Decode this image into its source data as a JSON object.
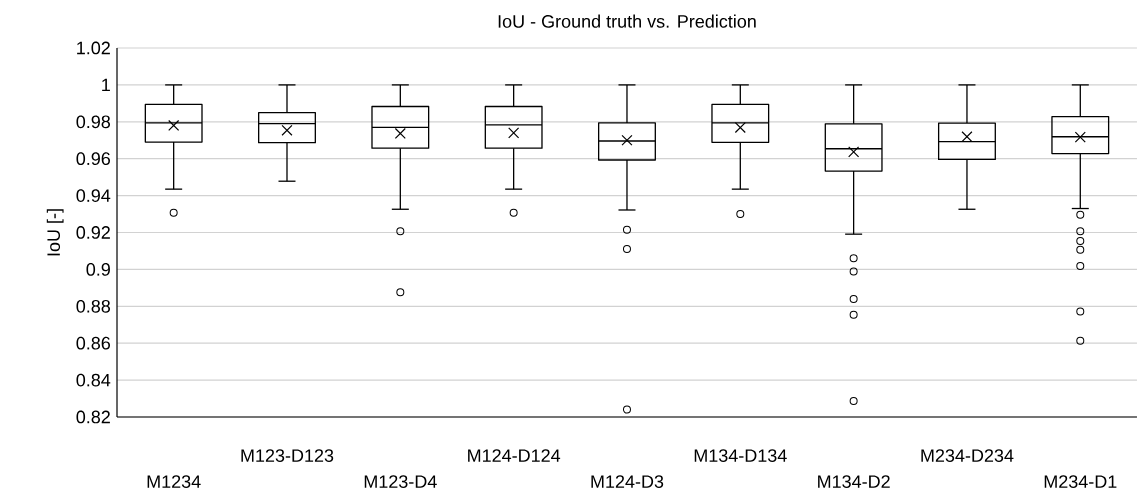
{
  "chart_data": {
    "type": "box",
    "title": "IoU - Ground truth vs. Prediction",
    "ylabel": "IoU [-]",
    "categories": [
      "M1234",
      "M123-D123",
      "M123-D4",
      "M124-D124",
      "M124-D3",
      "M134-D134",
      "M134-D2",
      "M234-D234",
      "M234-D1"
    ],
    "boxes": [
      {
        "low": 0.9435,
        "q1": 0.969,
        "median": 0.9794,
        "q3": 0.9894,
        "high": 1.0,
        "mean": 0.978,
        "outliers": [
          0.9307
        ]
      },
      {
        "low": 0.9478,
        "q1": 0.9687,
        "median": 0.979,
        "q3": 0.985,
        "high": 1.0,
        "mean": 0.9754
      },
      {
        "low": 0.9326,
        "q1": 0.9657,
        "median": 0.977,
        "q3": 0.9883,
        "high": 1.0,
        "mean": 0.9737,
        "outliers": [
          0.9207,
          0.8876
        ]
      },
      {
        "low": 0.9435,
        "q1": 0.9657,
        "median": 0.9783,
        "q3": 0.9883,
        "high": 1.0,
        "mean": 0.974,
        "outliers": [
          0.9307
        ]
      },
      {
        "low": 0.9322,
        "q1": 0.9593,
        "median": 0.9696,
        "q3": 0.9794,
        "high": 1.0,
        "mean": 0.97,
        "outliers": [
          0.9215,
          0.911,
          0.824
        ]
      },
      {
        "low": 0.9435,
        "q1": 0.9689,
        "median": 0.9794,
        "q3": 0.9894,
        "high": 1.0,
        "mean": 0.9769,
        "outliers": [
          0.93
        ]
      },
      {
        "low": 0.9191,
        "q1": 0.9533,
        "median": 0.9654,
        "q3": 0.9789,
        "high": 1.0,
        "mean": 0.9637,
        "outliers": [
          0.9061,
          0.8989,
          0.8839,
          0.8754,
          0.8287
        ]
      },
      {
        "low": 0.9326,
        "q1": 0.9596,
        "median": 0.9693,
        "q3": 0.9793,
        "high": 1.0,
        "mean": 0.9719
      },
      {
        "low": 0.933,
        "q1": 0.9628,
        "median": 0.9719,
        "q3": 0.9828,
        "high": 1.0,
        "mean": 0.9717,
        "outliers": [
          0.9296,
          0.9207,
          0.9154,
          0.9106,
          0.9019,
          0.8772,
          0.8613
        ]
      }
    ],
    "ylim": [
      0.82,
      1.02
    ],
    "yticks": [
      0.82,
      0.84,
      0.86,
      0.88,
      0.9,
      0.92,
      0.94,
      0.96,
      0.98,
      1,
      1.02
    ],
    "grid": "y",
    "marker": "circle"
  }
}
